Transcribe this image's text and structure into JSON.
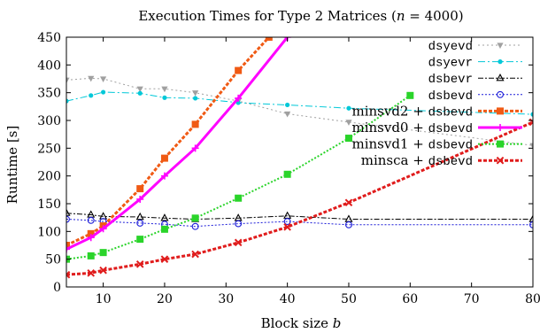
{
  "chart_data": {
    "type": "line",
    "title_prefix": "Execution Times for Type 2 Matrices (",
    "title_var": "n",
    "title_suffix": " = 4000)",
    "xlabel_text": "Block size ",
    "xlabel_var": "b",
    "ylabel": "Runtime [s]",
    "xlim": [
      4,
      80
    ],
    "ylim": [
      0,
      450
    ],
    "xticks": [
      10,
      20,
      30,
      40,
      50,
      60,
      70,
      80
    ],
    "yticks": [
      0,
      50,
      100,
      150,
      200,
      250,
      300,
      350,
      400,
      450
    ],
    "grid": false,
    "legend_position": "top-right",
    "series": [
      {
        "name": "dsyevd",
        "label_parts": [
          {
            "text": "dsyevd",
            "mono": true
          }
        ],
        "color": "#a0a0a0",
        "dash": "2,3",
        "width": 1,
        "marker": "triangle-down",
        "x": [
          4,
          8,
          10,
          16,
          20,
          25,
          32,
          40,
          50,
          80
        ],
        "y": [
          373,
          376,
          375,
          357,
          357,
          350,
          335,
          312,
          297,
          255
        ]
      },
      {
        "name": "dsyevr",
        "label_parts": [
          {
            "text": "dsyevr",
            "mono": true
          }
        ],
        "color": "#00c8d8",
        "dash": "8,3,2,3",
        "width": 1,
        "marker": "circle-filled",
        "x": [
          4,
          8,
          10,
          16,
          20,
          25,
          32,
          40,
          50,
          80
        ],
        "y": [
          335,
          345,
          351,
          349,
          341,
          340,
          332,
          328,
          322,
          311
        ]
      },
      {
        "name": "dsbevr",
        "label_parts": [
          {
            "text": "dsbevr",
            "mono": true
          }
        ],
        "color": "#000000",
        "dash": "6,2,2,2",
        "width": 1,
        "marker": "triangle-up",
        "x": [
          4,
          8,
          10,
          16,
          20,
          25,
          32,
          40,
          50,
          80
        ],
        "y": [
          133,
          130,
          127,
          126,
          124,
          122,
          124,
          128,
          122,
          122
        ]
      },
      {
        "name": "dsbevd",
        "label_parts": [
          {
            "text": "dsbevd",
            "mono": true
          }
        ],
        "color": "#1c1cd8",
        "dash": "2,2",
        "width": 1,
        "marker": "circle-open",
        "x": [
          4,
          8,
          10,
          16,
          20,
          25,
          32,
          40,
          50,
          80
        ],
        "y": [
          122,
          120,
          118,
          115,
          113,
          109,
          114,
          118,
          112,
          112
        ]
      },
      {
        "name": "minsvd2 + dsbevd",
        "label_parts": [
          {
            "text": "minsvd2 + ",
            "mono": false
          },
          {
            "text": "dsbevd",
            "mono": true
          }
        ],
        "color": "#f05a14",
        "dash": "4,2",
        "width": 3,
        "marker": "square-filled",
        "x": [
          4,
          8,
          10,
          16,
          20,
          25,
          32,
          37
        ],
        "y": [
          75,
          96,
          110,
          177,
          232,
          293,
          390,
          450
        ]
      },
      {
        "name": "minsvd0 + dsbevd",
        "label_parts": [
          {
            "text": "minsvd0 + ",
            "mono": false
          },
          {
            "text": "dsbevd",
            "mono": true
          }
        ],
        "color": "#ff00ff",
        "dash": "",
        "width": 3,
        "marker": "plus",
        "x": [
          4,
          8,
          10,
          16,
          20,
          25,
          32,
          40
        ],
        "y": [
          68,
          89,
          105,
          158,
          200,
          250,
          340,
          450
        ]
      },
      {
        "name": "minsvd1 + dsbevd",
        "label_parts": [
          {
            "text": "minsvd1 + ",
            "mono": false
          },
          {
            "text": "dsbevd",
            "mono": true
          }
        ],
        "color": "#2ad42a",
        "dash": "2,2",
        "width": 2,
        "marker": "square-filled",
        "x": [
          4,
          8,
          10,
          16,
          20,
          25,
          32,
          40,
          50,
          60
        ],
        "y": [
          50,
          56,
          62,
          86,
          104,
          124,
          160,
          203,
          268,
          345
        ]
      },
      {
        "name": "minsca + dsbevd",
        "label_parts": [
          {
            "text": "minsca + ",
            "mono": false
          },
          {
            "text": "dsbevd",
            "mono": true
          }
        ],
        "color": "#e01c1c",
        "dash": "4,2",
        "width": 3,
        "marker": "cross",
        "x": [
          4,
          8,
          10,
          16,
          20,
          25,
          32,
          40,
          50,
          80
        ],
        "y": [
          22,
          25,
          30,
          41,
          50,
          59,
          80,
          108,
          152,
          297
        ]
      }
    ]
  }
}
